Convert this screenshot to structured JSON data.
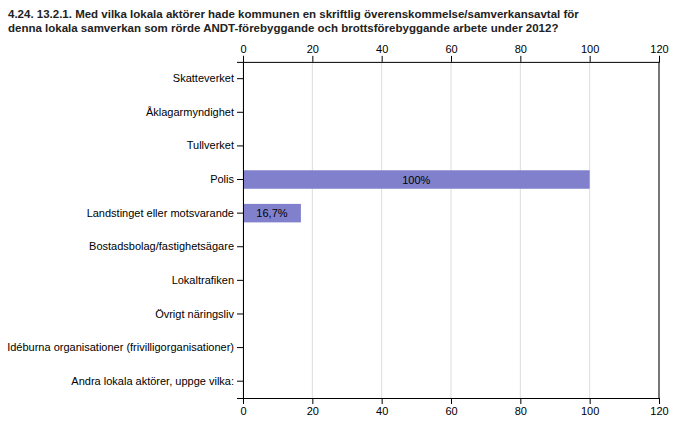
{
  "chart_data": {
    "type": "bar",
    "orientation": "horizontal",
    "title": "4.24. 13.2.1. Med vilka lokala aktörer hade kommunen en skriftlig överenskommelse/samverkansavtal för\ndenna lokala samverkan som rörde ANDT-förebyggande och brottsförebyggande arbete under 2012?",
    "categories": [
      "Skatteverket",
      "Åklagarmyndighet",
      "Tullverket",
      "Polis",
      "Landstinget eller motsvarande",
      "Bostadsbolag/fastighetsägare",
      "Lokaltrafiken",
      "Övrigt näringsliv",
      "Idéburna organisationer (frivilligorganisationer)",
      "Andra lokala aktörer, uppge vilka:"
    ],
    "values": [
      0,
      0,
      0,
      100,
      16.7,
      0,
      0,
      0,
      0,
      0
    ],
    "value_labels": [
      null,
      null,
      null,
      "100%",
      "16,7%",
      null,
      null,
      null,
      null,
      null
    ],
    "data_labels": true,
    "color": "#8080cc",
    "xlim": [
      0,
      120
    ],
    "xticks": [
      0,
      20,
      40,
      60,
      80,
      100,
      120
    ],
    "grid": true
  }
}
